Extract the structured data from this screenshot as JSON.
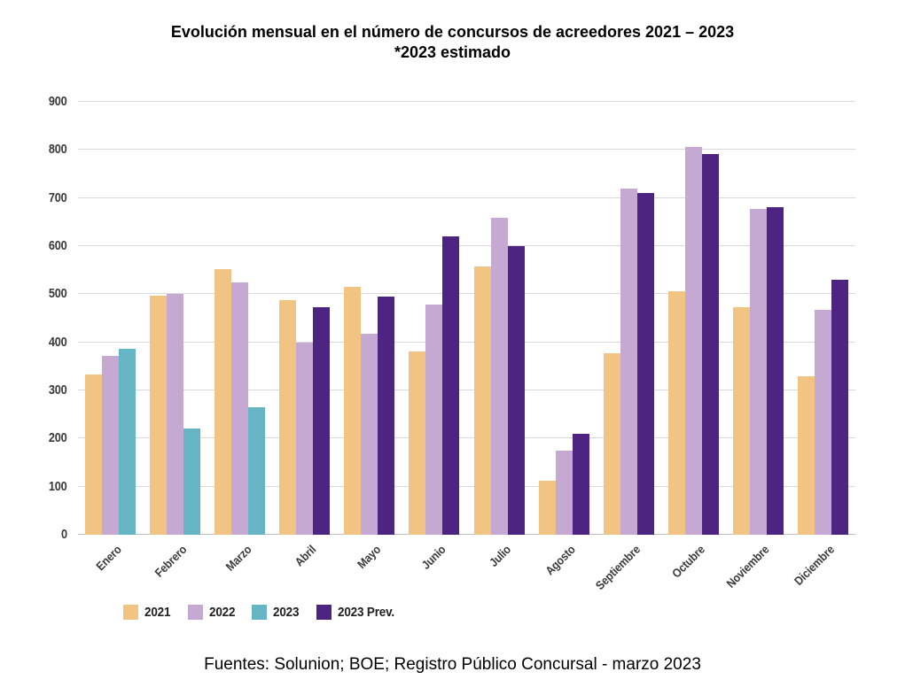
{
  "title": {
    "line1": "Evolución mensual en el número de concursos de acreedores 2021 – 2023",
    "line2": "*2023 estimado"
  },
  "source": "Fuentes: Solunion; BOE; Registro Público Concursal - marzo 2023",
  "chart_data": {
    "type": "bar",
    "title": "Evolución mensual en el número de concursos de acreedores 2021 – 2023 *2023 estimado",
    "xlabel": "",
    "ylabel": "",
    "ylim": [
      0,
      900
    ],
    "ytick_step": 100,
    "grid": true,
    "legend_position": "bottom-left",
    "categories": [
      "Enero",
      "Febrero",
      "Marzo",
      "Abril",
      "Mayo",
      "Junio",
      "Julio",
      "Agosto",
      "Septiembre",
      "Octubre",
      "Noviembre",
      "Diciembre"
    ],
    "series": [
      {
        "name": "2021",
        "color": "#F1C484",
        "values": [
          334,
          497,
          552,
          488,
          515,
          381,
          557,
          113,
          377,
          506,
          473,
          330
        ]
      },
      {
        "name": "2022",
        "color": "#C5A9D3",
        "values": [
          371,
          500,
          524,
          399,
          417,
          478,
          658,
          175,
          719,
          806,
          678,
          467
        ]
      },
      {
        "name": "2023",
        "color": "#66B5C5",
        "values": [
          386,
          220,
          265,
          null,
          null,
          null,
          null,
          null,
          null,
          null,
          null,
          null
        ]
      },
      {
        "name": "2023 Prev.",
        "color": "#4E2483",
        "values": [
          null,
          null,
          null,
          473,
          495,
          620,
          600,
          210,
          710,
          792,
          681,
          530
        ]
      }
    ]
  },
  "colors": {
    "gridline": "#D9D9D9",
    "axis_line": "#BFBFBF",
    "tick_text": "#3A3A3A",
    "title_text": "#000000"
  }
}
